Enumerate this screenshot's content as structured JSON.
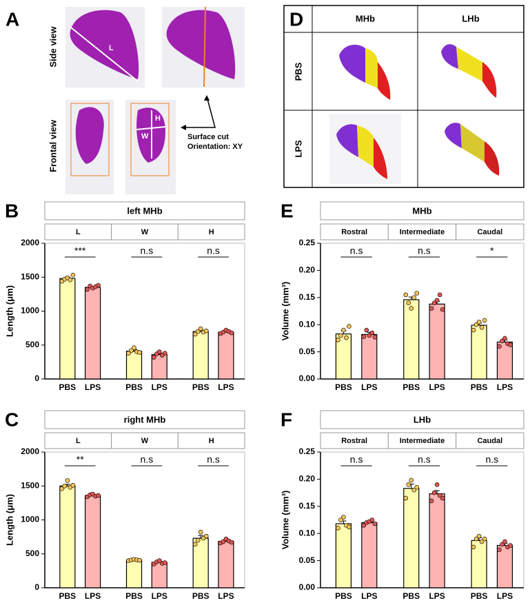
{
  "panel_a": {
    "letter": "A",
    "side_view": "Side view",
    "frontal_view": "Frontal view",
    "labels": [
      "L",
      "W",
      "H"
    ],
    "note": [
      "Surface cut",
      "Orientation: XY"
    ]
  },
  "panel_d": {
    "letter": "D",
    "columns": [
      "MHb",
      "LHb"
    ],
    "rows": [
      "PBS",
      "LPS"
    ]
  },
  "chart_data": [
    {
      "type": "bar",
      "letter": "B",
      "title": "left MHb",
      "groups": [
        "L",
        "W",
        "H"
      ],
      "categories": [
        "PBS",
        "LPS",
        "PBS",
        "LPS",
        "PBS",
        "LPS"
      ],
      "bar_colors": [
        "#ffffb3",
        "#ffb3b3"
      ],
      "point_colors": [
        "#f2c45a",
        "#e05555"
      ],
      "ylabel": "Length (μm)",
      "values": [
        1480,
        1350,
        410,
        360,
        700,
        690
      ],
      "errors": [
        20,
        15,
        25,
        20,
        20,
        15
      ],
      "points": [
        [
          1440,
          1470,
          1490,
          1460,
          1530
        ],
        [
          1320,
          1370,
          1340,
          1360,
          1380
        ],
        [
          380,
          420,
          460,
          400,
          390
        ],
        [
          320,
          370,
          400,
          350,
          380
        ],
        [
          660,
          700,
          740,
          690,
          710
        ],
        [
          670,
          690,
          720,
          700,
          680
        ]
      ],
      "significance": [
        "***",
        "n.s",
        "n.s"
      ],
      "ylim": [
        0,
        2000
      ],
      "yticks": [
        0,
        500,
        1000,
        1500,
        2000
      ]
    },
    {
      "type": "bar",
      "letter": "C",
      "title": "right MHb",
      "groups": [
        "L",
        "W",
        "H"
      ],
      "categories": [
        "PBS",
        "LPS",
        "PBS",
        "LPS",
        "PBS",
        "LPS"
      ],
      "bar_colors": [
        "#ffffb3",
        "#ffb3b3"
      ],
      "point_colors": [
        "#f2c45a",
        "#e05555"
      ],
      "ylabel": "Length (μm)",
      "values": [
        1500,
        1360,
        410,
        375,
        730,
        685
      ],
      "errors": [
        25,
        15,
        5,
        15,
        40,
        15
      ],
      "points": [
        [
          1460,
          1500,
          1580,
          1480,
          1510
        ],
        [
          1340,
          1370,
          1380,
          1350,
          1360
        ],
        [
          400,
          410,
          420,
          410,
          405
        ],
        [
          350,
          380,
          400,
          360,
          370
        ],
        [
          640,
          700,
          820,
          730,
          760
        ],
        [
          660,
          680,
          720,
          690,
          670
        ]
      ],
      "significance": [
        "**",
        "n.s",
        "n.s"
      ],
      "ylim": [
        0,
        2000
      ],
      "yticks": [
        0,
        500,
        1000,
        1500,
        2000
      ]
    },
    {
      "type": "bar",
      "letter": "E",
      "title": "MHb",
      "groups": [
        "Rostral",
        "Intermediate",
        "Caudal"
      ],
      "categories": [
        "PBS",
        "LPS",
        "PBS",
        "LPS",
        "PBS",
        "LPS"
      ],
      "bar_colors": [
        "#ffffb3",
        "#ffb3b3"
      ],
      "point_colors": [
        "#f2c45a",
        "#e05555"
      ],
      "ylabel": "Volume (mm³)",
      "values": [
        0.083,
        0.082,
        0.146,
        0.138,
        0.099,
        0.068
      ],
      "errors": [
        0.006,
        0.004,
        0.005,
        0.005,
        0.004,
        0.004
      ],
      "points": [
        [
          0.072,
          0.08,
          0.09,
          0.076,
          0.097
        ],
        [
          0.078,
          0.09,
          0.08,
          0.085,
          0.077
        ],
        [
          0.155,
          0.14,
          0.13,
          0.15,
          0.158
        ],
        [
          0.13,
          0.14,
          0.145,
          0.155,
          0.128
        ],
        [
          0.09,
          0.1,
          0.105,
          0.095,
          0.108
        ],
        [
          0.06,
          0.07,
          0.075,
          0.065,
          0.063
        ]
      ],
      "significance": [
        "n.s",
        "n.s",
        "*"
      ],
      "ylim": [
        0,
        0.25
      ],
      "yticks": [
        {
          "value": 0,
          "label": "0.00"
        },
        0.05,
        {
          "value": 0.1,
          "label": "0.10"
        },
        0.15,
        {
          "value": 0.2,
          "label": "0.20"
        },
        0.25
      ]
    },
    {
      "type": "bar",
      "letter": "F",
      "title": "LHb",
      "groups": [
        "Rostral",
        "Intermediate",
        "Caudal"
      ],
      "categories": [
        "PBS",
        "LPS",
        "PBS",
        "LPS",
        "PBS",
        "LPS"
      ],
      "bar_colors": [
        "#ffffb3",
        "#ffb3b3"
      ],
      "point_colors": [
        "#f2c45a",
        "#e05555"
      ],
      "ylabel": "Volume (mm³)",
      "values": [
        0.118,
        0.12,
        0.183,
        0.173,
        0.087,
        0.078
      ],
      "errors": [
        0.005,
        0.003,
        0.008,
        0.006,
        0.005,
        0.004
      ],
      "points": [
        [
          0.11,
          0.125,
          0.13,
          0.115,
          0.112
        ],
        [
          0.115,
          0.12,
          0.122,
          0.125,
          0.118
        ],
        [
          0.165,
          0.19,
          0.198,
          0.18,
          0.185
        ],
        [
          0.16,
          0.175,
          0.19,
          0.17,
          0.165
        ],
        [
          0.075,
          0.09,
          0.095,
          0.085,
          0.09
        ],
        [
          0.07,
          0.08,
          0.085,
          0.075,
          0.078
        ]
      ],
      "significance": [
        "n.s",
        "n.s",
        "n.s"
      ],
      "ylim": [
        0,
        0.25
      ],
      "yticks": [
        {
          "value": 0,
          "label": "0.00"
        },
        0.05,
        {
          "value": 0.1,
          "label": "0.10"
        },
        0.15,
        {
          "value": 0.2,
          "label": "0.20"
        },
        0.25
      ]
    }
  ]
}
